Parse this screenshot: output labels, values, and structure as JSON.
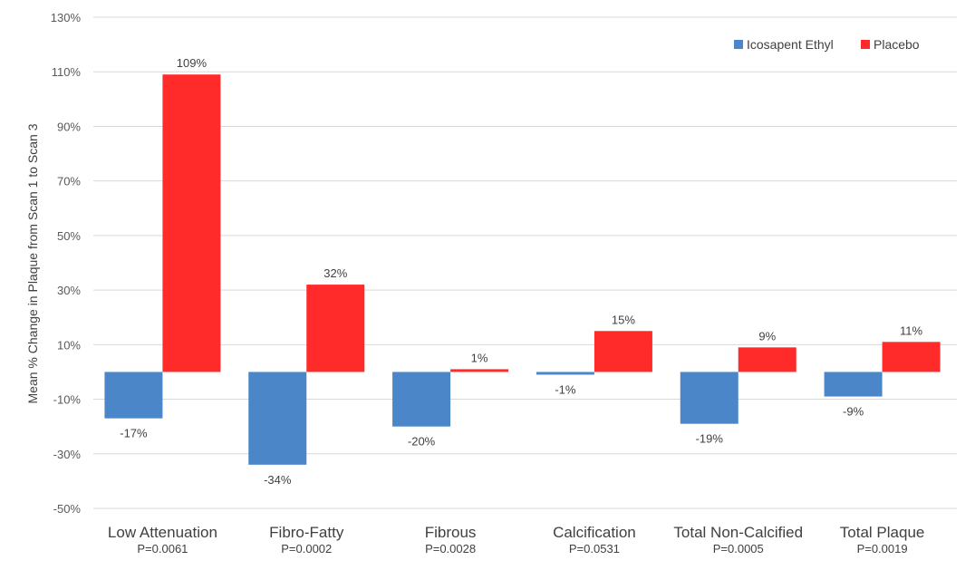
{
  "chart_data": {
    "type": "bar",
    "title": "",
    "xlabel": "",
    "ylabel": "Mean % Change in Plaque from Scan 1 to Scan 3",
    "ylim": [
      -50,
      130
    ],
    "yticks": [
      130,
      110,
      90,
      70,
      50,
      30,
      10,
      -10,
      -30,
      -50
    ],
    "ytick_labels": [
      "130%",
      "110%",
      "90%",
      "70%",
      "50%",
      "30%",
      "10%",
      "-10%",
      "-30%",
      "-50%"
    ],
    "grid": true,
    "legend_position": "top-right",
    "categories": [
      "Low Attenuation",
      "Fibro-Fatty",
      "Fibrous",
      "Calcification",
      "Total Non-Calcified",
      "Total Plaque"
    ],
    "p_values": [
      "P=0.0061",
      "P=0.0002",
      "P=0.0028",
      "P=0.0531",
      "P=0.0005",
      "P=0.0019"
    ],
    "series": [
      {
        "name": "Icosapent Ethyl",
        "color": "#4a86c8",
        "values": [
          -17,
          -34,
          -20,
          -1,
          -19,
          -9
        ],
        "labels": [
          "-17%",
          "-34%",
          "-20%",
          "-1%",
          "-19%",
          "-9%"
        ]
      },
      {
        "name": "Placebo",
        "color": "#ff2a2a",
        "values": [
          109,
          32,
          1,
          15,
          9,
          11
        ],
        "labels": [
          "109%",
          "32%",
          "1%",
          "15%",
          "9%",
          "11%"
        ]
      }
    ]
  }
}
